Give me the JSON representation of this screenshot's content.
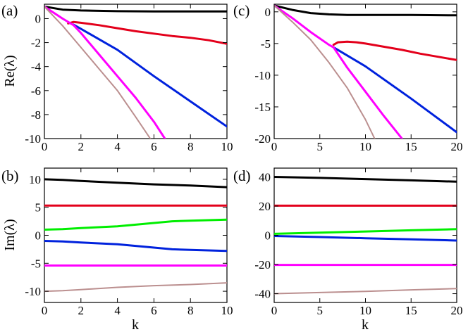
{
  "chart_data": [
    {
      "panel": "(a)",
      "type": "line",
      "xlabel": "",
      "ylabel": "Re(λ)",
      "xlim": [
        0,
        10
      ],
      "ylim": [
        -10,
        1.2
      ],
      "xticks": [
        0,
        2,
        4,
        6,
        8,
        10
      ],
      "yticks": [
        0,
        -2,
        -4,
        -6,
        -8,
        -10
      ],
      "series": [
        {
          "name": "black",
          "color": "#000000",
          "x": [
            0,
            1,
            2,
            4,
            6,
            8,
            10
          ],
          "y": [
            1.0,
            0.75,
            0.68,
            0.62,
            0.6,
            0.6,
            0.6
          ]
        },
        {
          "name": "red",
          "color": "#e3001b",
          "x": [
            1.3,
            1.6,
            2,
            3,
            4,
            5,
            6,
            7,
            8,
            9,
            10
          ],
          "y": [
            -0.4,
            -0.28,
            -0.35,
            -0.55,
            -0.8,
            -1.05,
            -1.25,
            -1.45,
            -1.6,
            -1.8,
            -2.1
          ]
        },
        {
          "name": "blue",
          "color": "#0022dd",
          "x": [
            1.6,
            4,
            6,
            8,
            10
          ],
          "y": [
            -0.5,
            -2.6,
            -4.8,
            -6.9,
            -9.0
          ]
        },
        {
          "name": "magenta",
          "color": "#ff00ff",
          "x": [
            0,
            1,
            1.6,
            2,
            3,
            4,
            5,
            6,
            6.6
          ],
          "y": [
            1.0,
            0.0,
            -0.55,
            -1.2,
            -3.0,
            -4.8,
            -6.6,
            -8.6,
            -10.0
          ]
        },
        {
          "name": "tan",
          "color": "#bb8f8f",
          "x": [
            0,
            1,
            2,
            3,
            4,
            5,
            5.8
          ],
          "y": [
            1.0,
            -0.6,
            -2.4,
            -4.2,
            -6.0,
            -8.2,
            -10.0
          ]
        }
      ]
    },
    {
      "panel": "(b)",
      "type": "line",
      "xlabel": "k",
      "ylabel": "Im(λ)",
      "xlim": [
        0,
        10
      ],
      "ylim": [
        -12,
        12
      ],
      "xticks": [
        0,
        2,
        4,
        6,
        8,
        10
      ],
      "yticks": [
        10,
        5,
        0,
        -5,
        -10
      ],
      "series": [
        {
          "name": "black",
          "color": "#000000",
          "x": [
            0,
            1,
            2,
            4,
            6,
            8,
            10
          ],
          "y": [
            10.0,
            9.9,
            9.7,
            9.4,
            9.1,
            8.9,
            8.6
          ]
        },
        {
          "name": "red",
          "color": "#e3001b",
          "x": [
            0,
            10
          ],
          "y": [
            5.3,
            5.3
          ]
        },
        {
          "name": "green",
          "color": "#00ee00",
          "x": [
            0,
            1,
            2,
            4,
            6,
            7,
            8,
            10
          ],
          "y": [
            1.0,
            1.1,
            1.3,
            1.6,
            2.2,
            2.5,
            2.6,
            2.8
          ]
        },
        {
          "name": "blue",
          "color": "#0022dd",
          "x": [
            0,
            1,
            2,
            4,
            6,
            7,
            8,
            10
          ],
          "y": [
            -1.0,
            -1.1,
            -1.3,
            -1.6,
            -2.2,
            -2.5,
            -2.6,
            -2.8
          ]
        },
        {
          "name": "magenta",
          "color": "#ff00ff",
          "x": [
            0,
            10
          ],
          "y": [
            -5.4,
            -5.4
          ]
        },
        {
          "name": "tan",
          "color": "#bb8f8f",
          "x": [
            0,
            1,
            2,
            4,
            6,
            8,
            10
          ],
          "y": [
            -10.0,
            -9.9,
            -9.7,
            -9.3,
            -9.0,
            -8.8,
            -8.5
          ]
        }
      ]
    },
    {
      "panel": "(c)",
      "type": "line",
      "xlabel": "",
      "ylabel": "",
      "xlim": [
        0,
        20
      ],
      "ylim": [
        -20,
        1.2
      ],
      "xticks": [
        0,
        5,
        10,
        15,
        20
      ],
      "yticks": [
        0,
        -5,
        -10,
        -15,
        -20
      ],
      "series": [
        {
          "name": "black",
          "color": "#000000",
          "x": [
            0,
            2,
            4,
            6,
            8,
            10,
            15,
            20
          ],
          "y": [
            1.0,
            0.3,
            -0.2,
            -0.4,
            -0.5,
            -0.5,
            -0.5,
            -0.55
          ]
        },
        {
          "name": "red",
          "color": "#e3001b",
          "x": [
            6.5,
            7,
            8,
            9,
            10,
            12,
            14,
            16,
            18,
            20
          ],
          "y": [
            -5.2,
            -4.8,
            -4.7,
            -4.8,
            -5.0,
            -5.5,
            -6.0,
            -6.6,
            -7.1,
            -7.6
          ]
        },
        {
          "name": "blue",
          "color": "#0022dd",
          "x": [
            6.5,
            10,
            15,
            20
          ],
          "y": [
            -5.6,
            -8.6,
            -13.7,
            -19.0
          ]
        },
        {
          "name": "magenta",
          "color": "#ff00ff",
          "x": [
            0,
            2,
            4,
            6,
            6.5,
            8,
            10,
            12,
            14
          ],
          "y": [
            1.0,
            -1.0,
            -3.2,
            -5.2,
            -5.6,
            -8.8,
            -12.6,
            -16.4,
            -20.0
          ]
        },
        {
          "name": "tan",
          "color": "#bb8f8f",
          "x": [
            0,
            2,
            4,
            6,
            8,
            10,
            11
          ],
          "y": [
            1.0,
            -1.6,
            -4.4,
            -8.0,
            -12.0,
            -17.0,
            -20.0
          ]
        }
      ]
    },
    {
      "panel": "(d)",
      "type": "line",
      "xlabel": "k",
      "ylabel": "",
      "xlim": [
        0,
        20
      ],
      "ylim": [
        -46,
        46
      ],
      "xticks": [
        0,
        5,
        10,
        15,
        20
      ],
      "yticks": [
        40,
        20,
        0,
        -20,
        -40
      ],
      "series": [
        {
          "name": "black",
          "color": "#000000",
          "x": [
            0,
            5,
            10,
            15,
            20
          ],
          "y": [
            40.0,
            39.3,
            38.5,
            37.6,
            36.7
          ]
        },
        {
          "name": "red",
          "color": "#e3001b",
          "x": [
            0,
            20
          ],
          "y": [
            20.3,
            20.3
          ]
        },
        {
          "name": "green",
          "color": "#00ee00",
          "x": [
            0,
            5,
            10,
            15,
            20
          ],
          "y": [
            1.0,
            1.8,
            2.6,
            3.4,
            4.2
          ]
        },
        {
          "name": "blue",
          "color": "#0022dd",
          "x": [
            0,
            5,
            10,
            15,
            20
          ],
          "y": [
            -0.5,
            -1.2,
            -2.0,
            -2.8,
            -3.6
          ]
        },
        {
          "name": "magenta",
          "color": "#ff00ff",
          "x": [
            0,
            20
          ],
          "y": [
            -20.3,
            -20.3
          ]
        },
        {
          "name": "tan",
          "color": "#bb8f8f",
          "x": [
            0,
            5,
            10,
            15,
            20
          ],
          "y": [
            -40.0,
            -39.2,
            -38.4,
            -37.4,
            -36.5
          ]
        }
      ]
    }
  ]
}
